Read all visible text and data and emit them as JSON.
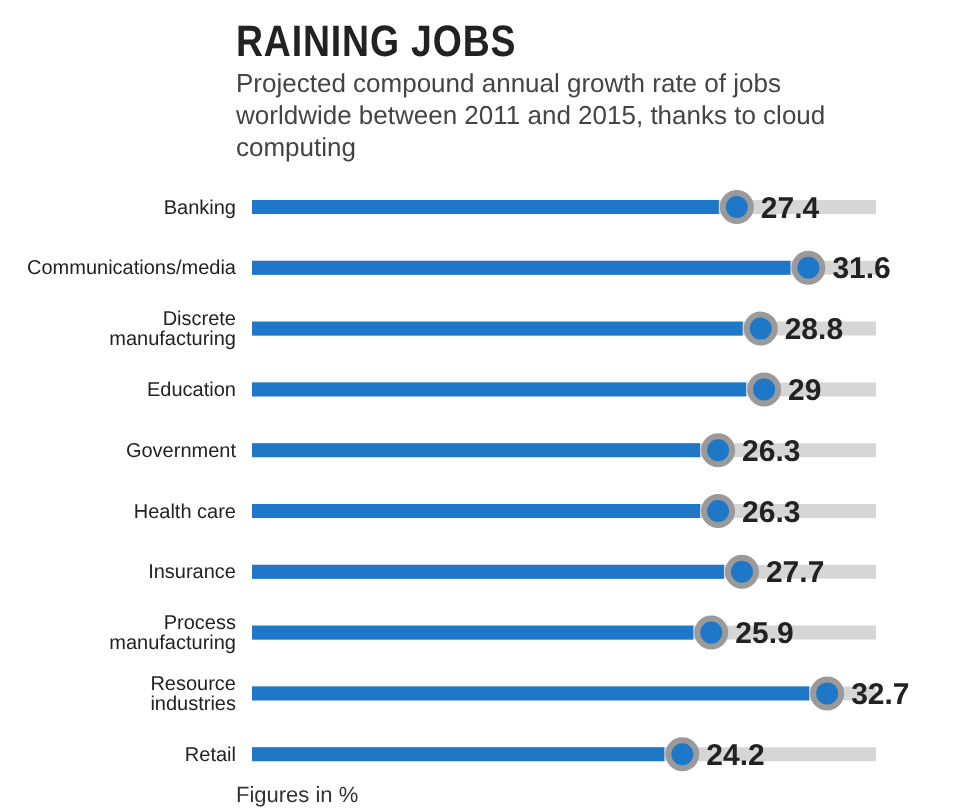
{
  "chart_data": {
    "type": "bar",
    "orientation": "horizontal",
    "title": "RAINING JOBS",
    "subtitle": "Projected compound annual growth rate of jobs worldwide between 2011 and 2015, thanks to cloud computing",
    "categories": [
      "Banking",
      "Communications/media",
      "Discrete manufacturing",
      "Education",
      "Government",
      "Health care",
      "Insurance",
      "Process manufacturing",
      "Resource industries",
      "Retail"
    ],
    "values": [
      27.4,
      31.6,
      28.8,
      29,
      26.3,
      26.3,
      27.7,
      25.9,
      32.7,
      24.2
    ],
    "color": "#1f77c8",
    "tick_labels": "y",
    "data_labels": true,
    "marker": "circle",
    "annotations": [
      "Figures in %"
    ]
  }
}
